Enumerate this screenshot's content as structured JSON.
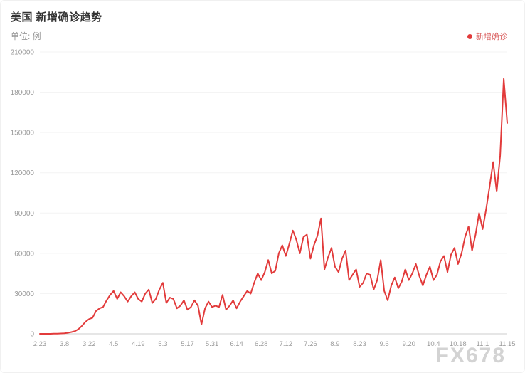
{
  "header": {
    "title": "美国 新增确诊趋势",
    "unit": "单位: 例"
  },
  "legend": {
    "label": "新增确诊",
    "color": "#e23b3b"
  },
  "watermark": "FX678",
  "chart_data": {
    "type": "line",
    "title": "美国 新增确诊趋势",
    "ylabel": "单位: 例",
    "series_name": "新增确诊",
    "line_color": "#e23b3b",
    "grid": true,
    "legend_position": "top-right",
    "ylim": [
      0,
      210000
    ],
    "y_ticks": [
      0,
      30000,
      60000,
      90000,
      120000,
      150000,
      180000,
      210000
    ],
    "x_tick_labels": [
      "2.23",
      "3.8",
      "3.22",
      "4.5",
      "4.19",
      "5.3",
      "5.17",
      "5.31",
      "6.14",
      "6.28",
      "7.12",
      "7.26",
      "8.9",
      "8.23",
      "9.6",
      "9.20",
      "10.4",
      "10.18",
      "11.1",
      "11.15"
    ],
    "x_tick_every": 7,
    "x_step_days": 2,
    "values": [
      0,
      0,
      0,
      0,
      100,
      150,
      250,
      400,
      800,
      1300,
      2000,
      3500,
      6000,
      9000,
      11000,
      12000,
      17000,
      19000,
      20000,
      25000,
      29000,
      32000,
      26000,
      31000,
      28000,
      24000,
      28000,
      31000,
      26000,
      24000,
      30000,
      33000,
      23000,
      26000,
      33000,
      38000,
      23000,
      27000,
      26000,
      19000,
      21000,
      25000,
      18000,
      20000,
      25000,
      21000,
      7000,
      19000,
      24000,
      20000,
      21000,
      20000,
      29000,
      18000,
      21000,
      25000,
      19000,
      24000,
      28000,
      32000,
      30000,
      38000,
      45000,
      40000,
      46000,
      55000,
      45000,
      47000,
      60000,
      66000,
      58000,
      67000,
      77000,
      70000,
      60000,
      72000,
      74000,
      56000,
      66000,
      73000,
      86000,
      48000,
      57000,
      64000,
      50000,
      46000,
      56000,
      62000,
      40000,
      44000,
      48000,
      35000,
      38000,
      45000,
      44000,
      33000,
      40000,
      55000,
      32000,
      25000,
      36000,
      42000,
      34000,
      39000,
      48000,
      40000,
      45000,
      52000,
      43000,
      36000,
      44000,
      50000,
      40000,
      44000,
      54000,
      58000,
      46000,
      59000,
      64000,
      52000,
      60000,
      72000,
      80000,
      62000,
      74000,
      90000,
      78000,
      93000,
      110000,
      128000,
      106000,
      133000,
      190000,
      157000
    ]
  }
}
